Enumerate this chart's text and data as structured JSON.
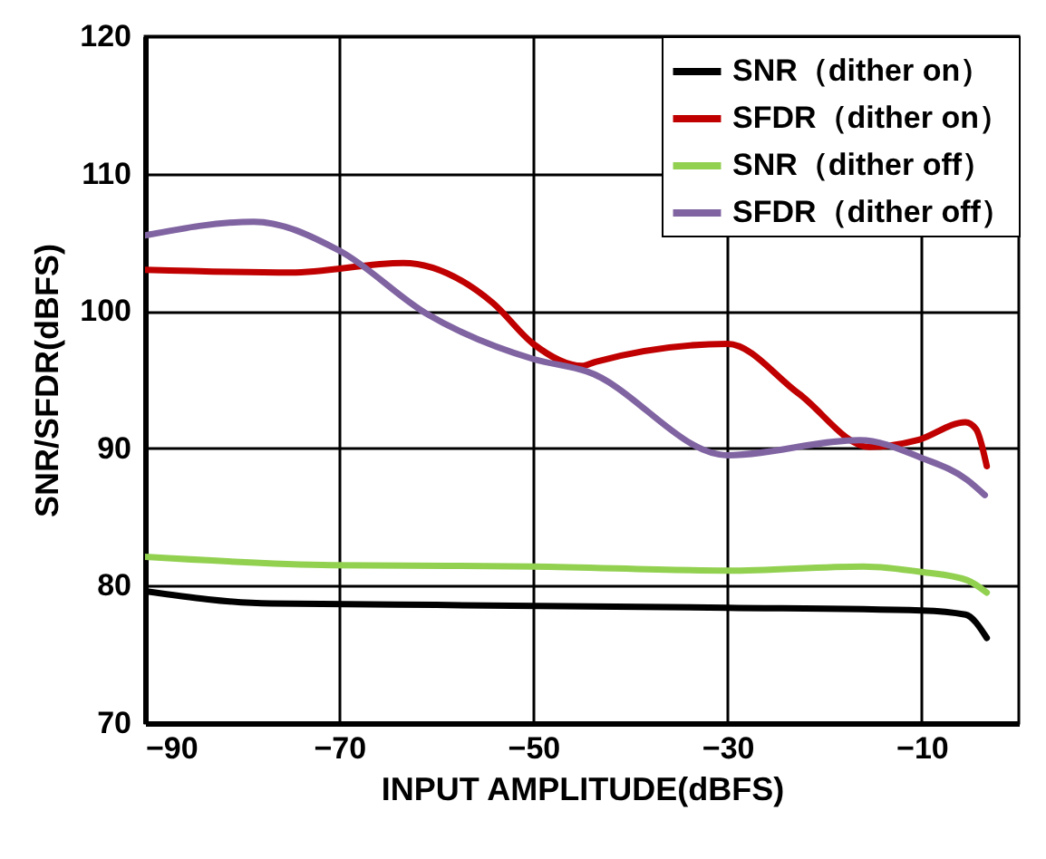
{
  "chart_data": {
    "type": "line",
    "xlabel": "INPUT AMPLITUDE(dBFS)",
    "ylabel": "SNR/SFDR(dBFS)",
    "xlim": [
      -90,
      0
    ],
    "xticks": [
      -90,
      -70,
      -50,
      -30,
      -10
    ],
    "ylim": [
      70,
      120
    ],
    "yticks": [
      70,
      80,
      90,
      100,
      110,
      120
    ],
    "grid": true,
    "legend": "top right",
    "series": [
      {
        "name": "SNR（dither on）",
        "color": "#000000",
        "x": [
          -90,
          -77,
          -60,
          -30,
          -10,
          -5.5,
          -3.3
        ],
        "values": [
          79.6,
          78.7,
          78.6,
          78.4,
          78.2,
          77.9,
          76.2
        ]
      },
      {
        "name": "SFDR（dither on）",
        "color": "#c00000",
        "x": [
          -90,
          -75,
          -63.4,
          -54.2,
          -50,
          -45,
          -43.6,
          -30,
          -22.7,
          -15.4,
          -10.4,
          -5.5,
          -4.4,
          -3.3
        ],
        "values": [
          103,
          102.8,
          103.5,
          100.6,
          97.6,
          96,
          96.3,
          97.6,
          94,
          90.1,
          90.6,
          91.9,
          91.4,
          88.7
        ]
      },
      {
        "name": "SNR（dither off）",
        "color": "#92d050",
        "x": [
          -90,
          -70.7,
          -50,
          -30,
          -16,
          -10,
          -5.3,
          -3.3
        ],
        "values": [
          82.1,
          81.5,
          81.4,
          81.1,
          81.4,
          81,
          80.4,
          79.5
        ]
      },
      {
        "name": "SFDR（dither off）",
        "color": "#8064a2",
        "x": [
          -90,
          -78.8,
          -70,
          -61,
          -50,
          -44.5,
          -30,
          -16.4,
          -10,
          -5.3,
          -3.5
        ],
        "values": [
          105.5,
          106.5,
          104.4,
          99.8,
          96.5,
          95.6,
          89.5,
          90.6,
          89.3,
          87.7,
          86.6
        ]
      }
    ]
  }
}
